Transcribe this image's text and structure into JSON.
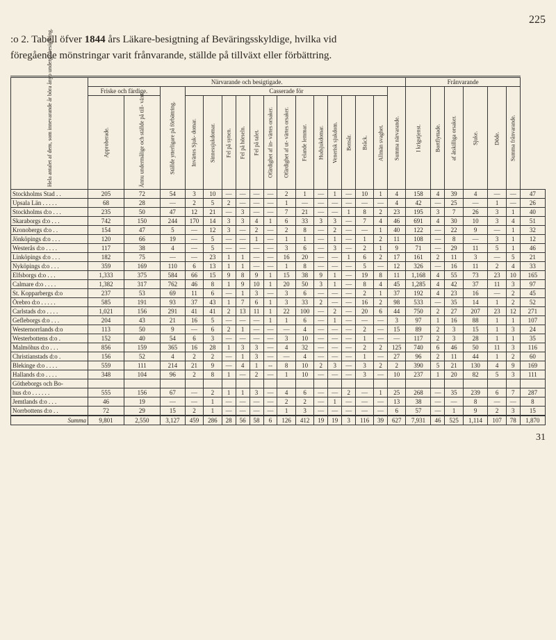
{
  "pageNumber": "225",
  "titleLine1Prefix": ":o 2. Tabell öfver ",
  "titleYear": "1844",
  "titleLine1Suffix": " års Läkare-besigtning af Beväringsskyldige, hvilka vid",
  "titleLine2": "föregående mönstringar varit frånvarande, ställde på tillväxt eller förbättring.",
  "footerNumber": "31",
  "headers": {
    "group1": "Hela antalet af dem, som innevarande år böra ånyo undergå besigtning.",
    "group2": "Närvarande och besigtigade.",
    "group3": "Frånvarande",
    "friske": "Friske och färdige.",
    "casserade": "Casserade för",
    "c1": "Approberade.",
    "c2": "Ännu undermålige och ställde på till- växt.",
    "c3": "Ställde ytterligare på förbättring.",
    "c4": "Invärtes Sjuk- domar.",
    "c5": "Sinnessjukdomar.",
    "c6": "Fel på synen.",
    "c7": "Fel på hörseln.",
    "c8": "Fel på talet.",
    "c9": "Ofärdighet af in- värtes orsaker.",
    "c10": "Ofärdighet af ut- värtes orsaker.",
    "c11": "Felande lemmar.",
    "c12": "Hudsjukdomar.",
    "c13": "Venerisk sjukdom.",
    "c14": "Bensår.",
    "c15": "Bråck.",
    "c16": "Allmän svaghet.",
    "c17": "Summa närvarande.",
    "c18": "I krigstjenst.",
    "c19": "Bortflyttade.",
    "c20": "af åtskilliga orsaker.",
    "c21": "Sjuke.",
    "c22": "Döde.",
    "c23": "Summa frånvarande."
  },
  "rows": [
    {
      "label": "Stockholms Stad . .",
      "cells": [
        "205",
        "72",
        "54",
        "3",
        "10",
        "—",
        "—",
        "—",
        "—",
        "2",
        "1",
        "—",
        "1",
        "—",
        "10",
        "1",
        "4",
        "158",
        "4",
        "39",
        "4",
        "—",
        "—",
        "47"
      ]
    },
    {
      "label": "Upsala Län . . . . .",
      "cells": [
        "68",
        "28",
        "—",
        "2",
        "5",
        "2",
        "—",
        "—",
        "—",
        "1",
        "—",
        "—",
        "—",
        "—",
        "—",
        "—",
        "4",
        "42",
        "—",
        "25",
        "—",
        "1",
        "—",
        "26"
      ]
    },
    {
      "label": "Stockholms d:o . . .",
      "cells": [
        "235",
        "50",
        "47",
        "12",
        "21",
        "—",
        "3",
        "—",
        "—",
        "7",
        "21",
        "—",
        "—",
        "1",
        "8",
        "2",
        "23",
        "195",
        "3",
        "7",
        "26",
        "3",
        "1",
        "40"
      ]
    },
    {
      "label": "Skaraborgs d:o . . .",
      "cells": [
        "742",
        "150",
        "244",
        "170",
        "14",
        "3",
        "3",
        "4",
        "1",
        "6",
        "33",
        "3",
        "3",
        "—",
        "7",
        "4",
        "46",
        "691",
        "4",
        "30",
        "10",
        "3",
        "4",
        "51"
      ]
    },
    {
      "label": "Kronobergs d:o . .",
      "cells": [
        "154",
        "47",
        "5",
        "—",
        "12",
        "3",
        "—",
        "2",
        "—",
        "2",
        "8",
        "—",
        "2",
        "—",
        "—",
        "1",
        "40",
        "122",
        "—",
        "22",
        "9",
        "—",
        "1",
        "32"
      ]
    },
    {
      "label": "Jönköpings d:o . . .",
      "cells": [
        "120",
        "66",
        "19",
        "—",
        "5",
        "—",
        "—",
        "1",
        "—",
        "1",
        "1",
        "—",
        "1",
        "—",
        "1",
        "2",
        "11",
        "108",
        "—",
        "8",
        "—",
        "3",
        "1",
        "12"
      ]
    },
    {
      "label": "Westerås d:o . . . .",
      "cells": [
        "117",
        "38",
        "4",
        "—",
        "5",
        "—",
        "—",
        "—",
        "—",
        "3",
        "6",
        "—",
        "3",
        "—",
        "2",
        "1",
        "9",
        "71",
        "—",
        "29",
        "11",
        "5",
        "1",
        "46"
      ]
    },
    {
      "label": "Linköpings d:o . . .",
      "cells": [
        "182",
        "75",
        "—",
        "—",
        "23",
        "1",
        "1",
        "—",
        "—",
        "16",
        "20",
        "—",
        "—",
        "1",
        "6",
        "2",
        "17",
        "161",
        "2",
        "11",
        "3",
        "—",
        "5",
        "21"
      ]
    },
    {
      "label": "Nyköpings d:o . . .",
      "cells": [
        "359",
        "169",
        "110",
        "6",
        "13",
        "1",
        "1",
        "—",
        "—",
        "1",
        "8",
        "—",
        "—",
        "—",
        "5",
        "—",
        "12",
        "326",
        "—",
        "16",
        "11",
        "2",
        "4",
        "33"
      ]
    },
    {
      "label": "Elfsborgs d:o . . .",
      "cells": [
        "1,333",
        "375",
        "584",
        "66",
        "15",
        "9",
        "8",
        "9",
        "1",
        "15",
        "38",
        "9",
        "1",
        "—",
        "19",
        "8",
        "11",
        "1,168",
        "4",
        "55",
        "73",
        "23",
        "10",
        "165"
      ]
    },
    {
      "label": "Calmare d:o . . . .",
      "cells": [
        "1,382",
        "317",
        "762",
        "46",
        "8",
        "1",
        "9",
        "10",
        "1",
        "20",
        "50",
        "3",
        "1",
        "—",
        "8",
        "4",
        "45",
        "1,285",
        "4",
        "42",
        "37",
        "11",
        "3",
        "97"
      ]
    },
    {
      "label": "St. Kopparbergs d:o",
      "cells": [
        "237",
        "53",
        "69",
        "11",
        "6",
        "—",
        "1",
        "3",
        "—",
        "3",
        "6",
        "—",
        "—",
        "—",
        "2",
        "1",
        "37",
        "192",
        "4",
        "23",
        "16",
        "—",
        "2",
        "45"
      ]
    },
    {
      "label": "Örebro d:o . . . . .",
      "cells": [
        "585",
        "191",
        "93",
        "37",
        "43",
        "1",
        "7",
        "6",
        "1",
        "3",
        "33",
        "2",
        "—",
        "—",
        "16",
        "2",
        "98",
        "533",
        "—",
        "35",
        "14",
        "1",
        "2",
        "52"
      ]
    },
    {
      "label": "Carlstads d:o . . . .",
      "cells": [
        "1,021",
        "156",
        "291",
        "41",
        "41",
        "2",
        "13",
        "11",
        "1",
        "22",
        "100",
        "—",
        "2",
        "—",
        "20",
        "6",
        "44",
        "750",
        "2",
        "27",
        "207",
        "23",
        "12",
        "271"
      ]
    },
    {
      "label": "Gefleborgs d:o . . .",
      "cells": [
        "204",
        "43",
        "21",
        "16",
        "5",
        "—",
        "—",
        "—",
        "1",
        "1",
        "6",
        "—",
        "1",
        "—",
        "—",
        "—",
        "3",
        "97",
        "1",
        "16",
        "88",
        "1",
        "1",
        "107"
      ]
    },
    {
      "label": "Westernorrlands d:o",
      "cells": [
        "113",
        "50",
        "9",
        "—",
        "6",
        "2",
        "1",
        "—",
        "—",
        "—",
        "4",
        "—",
        "—",
        "—",
        "2",
        "—",
        "15",
        "89",
        "2",
        "3",
        "15",
        "1",
        "3",
        "24"
      ]
    },
    {
      "label": "Westerbottens d:o .",
      "cells": [
        "152",
        "40",
        "54",
        "6",
        "3",
        "—",
        "—",
        "—",
        "—",
        "3",
        "10",
        "—",
        "—",
        "—",
        "1",
        "—",
        "—",
        "117",
        "2",
        "3",
        "28",
        "1",
        "1",
        "35"
      ]
    },
    {
      "label": "Malmöhus d:o . . .",
      "cells": [
        "856",
        "159",
        "365",
        "16",
        "28",
        "1",
        "3",
        "3",
        "—",
        "4",
        "32",
        "—",
        "—",
        "—",
        "2",
        "2",
        "125",
        "740",
        "6",
        "46",
        "50",
        "11",
        "3",
        "116"
      ]
    },
    {
      "label": "Christianstads d:o .",
      "cells": [
        "156",
        "52",
        "4",
        "2",
        "2",
        "—",
        "1",
        "3",
        "—",
        "—",
        "4",
        "—",
        "—",
        "—",
        "1",
        "—",
        "27",
        "96",
        "2",
        "11",
        "44",
        "1",
        "2",
        "60"
      ]
    },
    {
      "label": "Blekinge d:o . . . .",
      "cells": [
        "559",
        "111",
        "214",
        "21",
        "9",
        "—",
        "4",
        "1",
        "--",
        "8",
        "10",
        "2",
        "3",
        "—",
        "3",
        "2",
        "2",
        "390",
        "5",
        "21",
        "130",
        "4",
        "9",
        "169"
      ]
    },
    {
      "label": "Hallands d:o . . . .",
      "cells": [
        "348",
        "104",
        "96",
        "2",
        "8",
        "1",
        "—",
        "2",
        "—",
        "1",
        "10",
        "—",
        "—",
        "—",
        "3",
        "—",
        "10",
        "237",
        "1",
        "20",
        "82",
        "5",
        "3",
        "111"
      ]
    },
    {
      "label": "Götheborgs och Bo-",
      "cells": [
        "",
        "",
        "",
        "",
        "",
        "",
        "",
        "",
        "",
        "",
        "",
        "",
        "",
        "",
        "",
        "",
        "",
        "",
        "",
        "",
        "",
        "",
        "",
        ""
      ]
    },
    {
      "label": "  hus d:o . . . . . .",
      "cells": [
        "555",
        "156",
        "67",
        "—",
        "2",
        "1",
        "1",
        "3",
        "—",
        "4",
        "6",
        "—",
        "—",
        "2",
        "—",
        "1",
        "25",
        "268",
        "—",
        "35",
        "239",
        "6",
        "7",
        "287"
      ]
    },
    {
      "label": "Jemtlands d:o . . .",
      "cells": [
        "46",
        "19",
        "—",
        "—",
        "1",
        "—",
        "—",
        "—",
        "—",
        "2",
        "2",
        "—",
        "1",
        "—",
        "—",
        "—",
        "13",
        "38",
        "—",
        "—",
        "8",
        "—",
        "—",
        "8"
      ]
    },
    {
      "label": "Norrbottens d:o . .",
      "cells": [
        "72",
        "29",
        "15",
        "2",
        "1",
        "—",
        "—",
        "—",
        "—",
        "1",
        "3",
        "—",
        "—",
        "—",
        "—",
        "—",
        "6",
        "57",
        "—",
        "1",
        "9",
        "2",
        "3",
        "15"
      ]
    }
  ],
  "summa": {
    "label": "Summa",
    "cells": [
      "9,801",
      "2,550",
      "3,127",
      "459",
      "286",
      "28",
      "56",
      "58",
      "6",
      "126",
      "412",
      "19",
      "19",
      "3",
      "116",
      "39",
      "627",
      "7,931",
      "46",
      "525",
      "1,114",
      "107",
      "78",
      "1,870"
    ]
  }
}
